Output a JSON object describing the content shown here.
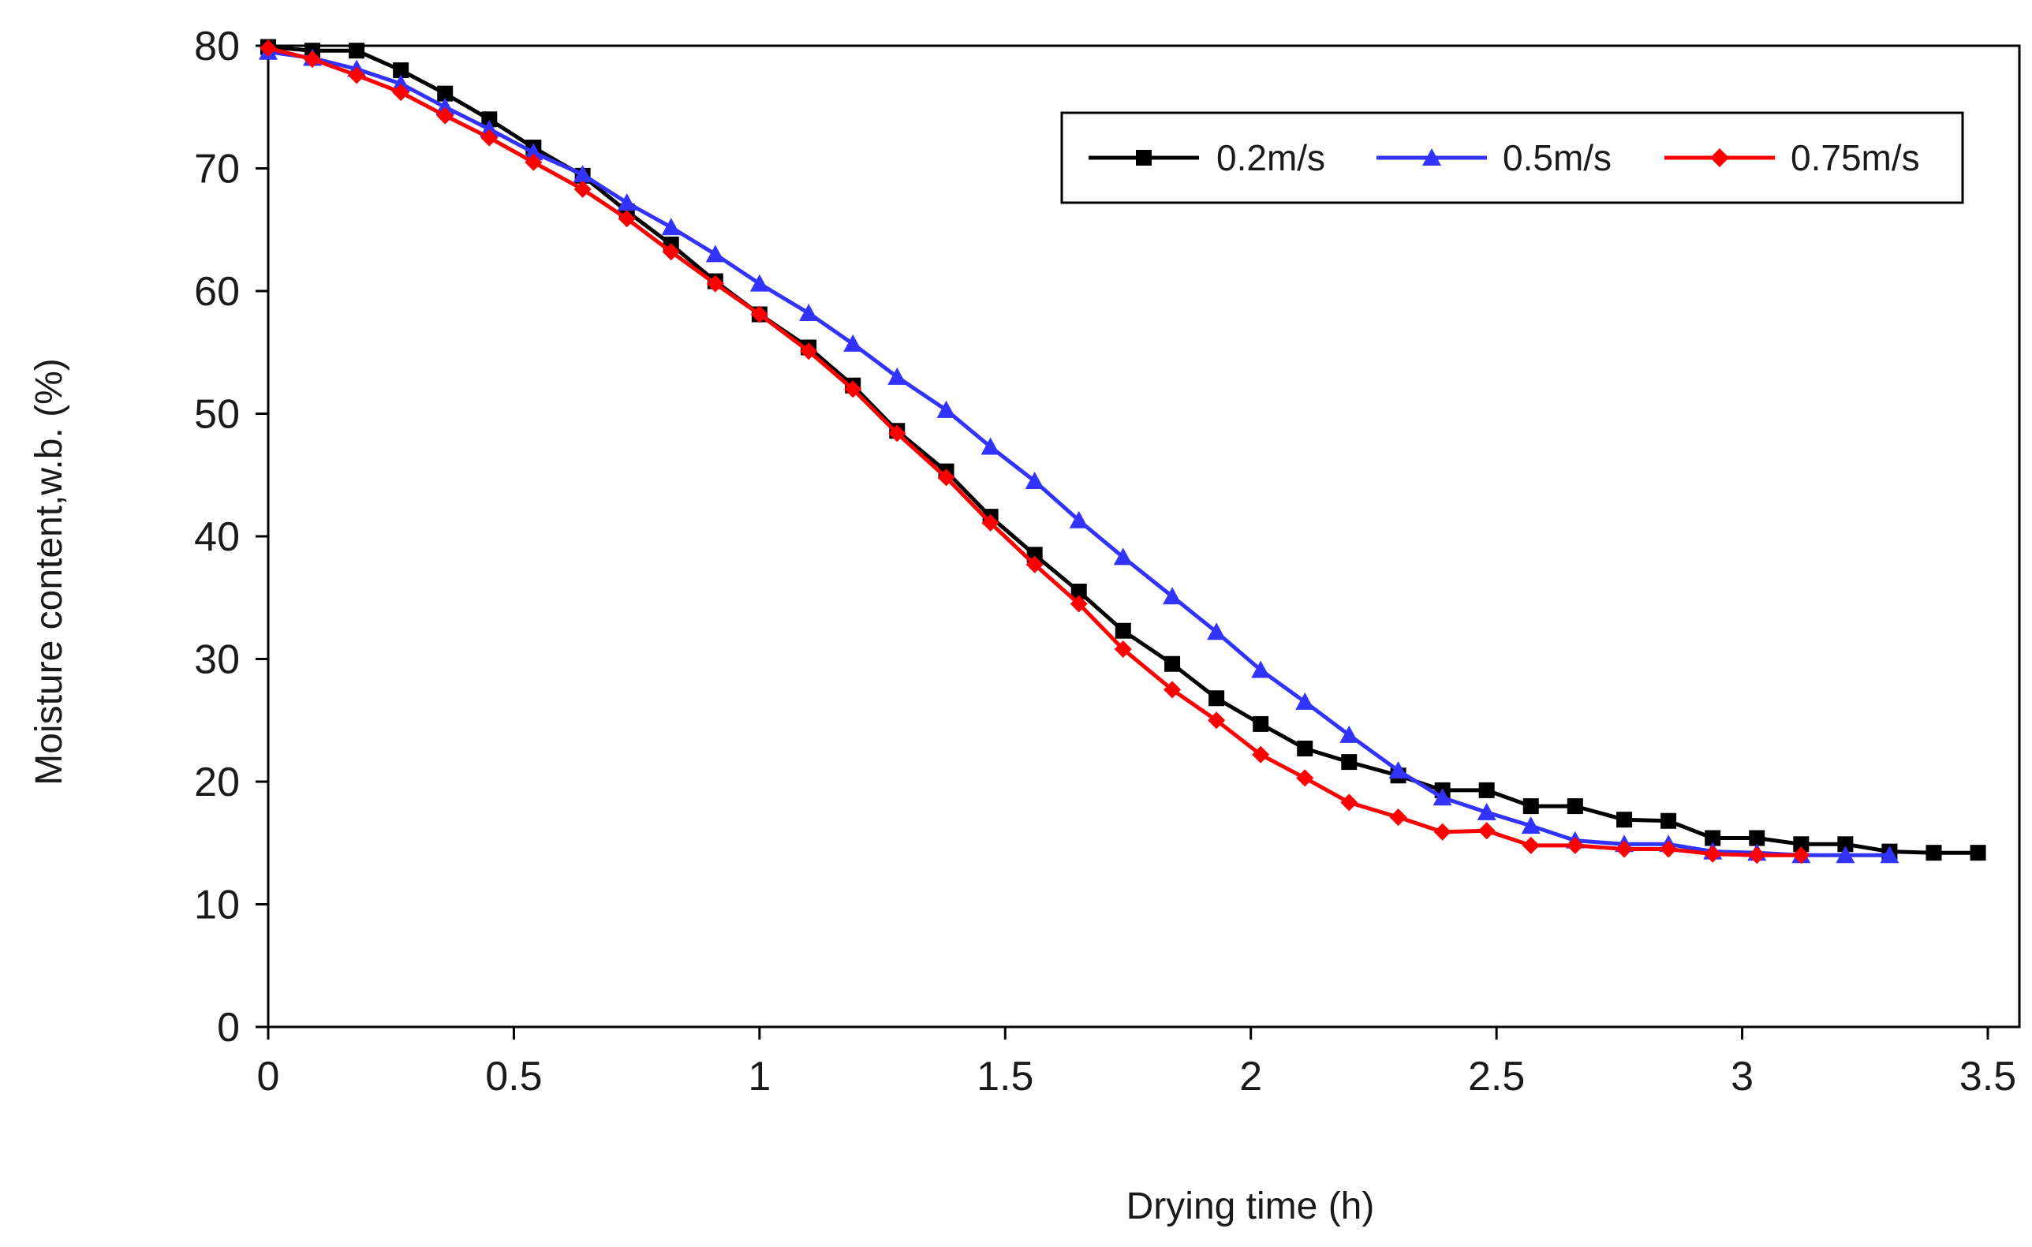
{
  "chart_data": {
    "type": "line",
    "title": "",
    "xlabel": "Drying time  (h)",
    "ylabel": "Moisture  content,w.b.  (%)",
    "xlim": [
      0,
      3.5
    ],
    "ylim": [
      0,
      80
    ],
    "xticks": [
      0,
      0.5,
      1,
      1.5,
      2,
      2.5,
      3,
      3.5
    ],
    "xtick_labels": [
      "0",
      "0.5",
      "1",
      "1.5",
      "2",
      "2.5",
      "3",
      "3.5"
    ],
    "yticks": [
      0,
      10,
      20,
      30,
      40,
      50,
      60,
      70,
      80
    ],
    "ytick_labels": [
      "0",
      "10",
      "20",
      "30",
      "40",
      "50",
      "60",
      "70",
      "80"
    ],
    "grid": false,
    "legend_position": "top-right",
    "series": [
      {
        "name": "0.2m/s",
        "color": "#000000",
        "marker": "square",
        "x": [
          0,
          0.09,
          0.18,
          0.27,
          0.36,
          0.45,
          0.54,
          0.64,
          0.73,
          0.82,
          0.91,
          1.0,
          1.1,
          1.19,
          1.28,
          1.38,
          1.47,
          1.56,
          1.65,
          1.74,
          1.84,
          1.93,
          2.02,
          2.11,
          2.2,
          2.3,
          2.39,
          2.48,
          2.57,
          2.66,
          2.76,
          2.85,
          2.94,
          3.03,
          3.12,
          3.21,
          3.3,
          3.39,
          3.48
        ],
        "values": [
          79.9,
          79.6,
          79.6,
          78.0,
          76.1,
          74.0,
          71.7,
          69.4,
          66.5,
          63.8,
          60.8,
          58.1,
          55.4,
          52.3,
          48.6,
          45.3,
          41.6,
          38.5,
          35.5,
          32.3,
          29.6,
          26.8,
          24.7,
          22.7,
          21.6,
          20.5,
          19.3,
          19.3,
          18.0,
          18.0,
          16.9,
          16.8,
          15.4,
          15.4,
          14.9,
          14.9,
          14.3,
          14.2,
          14.2
        ]
      },
      {
        "name": "0.5m/s",
        "color": "#3333ff",
        "marker": "triangle",
        "x": [
          0,
          0.09,
          0.18,
          0.27,
          0.36,
          0.45,
          0.54,
          0.64,
          0.73,
          0.82,
          0.91,
          1.0,
          1.1,
          1.19,
          1.28,
          1.38,
          1.47,
          1.56,
          1.65,
          1.74,
          1.84,
          1.93,
          2.02,
          2.11,
          2.2,
          2.3,
          2.39,
          2.48,
          2.57,
          2.66,
          2.76,
          2.85,
          2.94,
          3.03,
          3.12,
          3.21,
          3.3
        ],
        "values": [
          79.5,
          79.0,
          78.1,
          76.9,
          75.0,
          73.2,
          71.3,
          69.5,
          67.2,
          65.2,
          63.0,
          60.6,
          58.2,
          55.7,
          53.0,
          50.3,
          47.3,
          44.5,
          41.3,
          38.3,
          35.1,
          32.2,
          29.1,
          26.5,
          23.8,
          20.9,
          18.7,
          17.5,
          16.4,
          15.2,
          14.9,
          14.9,
          14.3,
          14.2,
          14.0,
          14.0,
          14.0
        ]
      },
      {
        "name": "0.75m/s",
        "color": "#ff0000",
        "marker": "diamond",
        "x": [
          0,
          0.09,
          0.18,
          0.27,
          0.36,
          0.45,
          0.54,
          0.64,
          0.73,
          0.82,
          0.91,
          1.0,
          1.1,
          1.19,
          1.28,
          1.38,
          1.47,
          1.56,
          1.65,
          1.74,
          1.84,
          1.93,
          2.02,
          2.11,
          2.2,
          2.3,
          2.39,
          2.48,
          2.57,
          2.66,
          2.76,
          2.85,
          2.94,
          3.03,
          3.12
        ],
        "values": [
          79.8,
          78.9,
          77.6,
          76.2,
          74.3,
          72.5,
          70.5,
          68.3,
          65.9,
          63.2,
          60.6,
          58.1,
          55.1,
          52.0,
          48.4,
          44.8,
          41.1,
          37.7,
          34.5,
          30.8,
          27.5,
          25.0,
          22.2,
          20.3,
          18.3,
          17.1,
          15.9,
          16.0,
          14.8,
          14.8,
          14.5,
          14.5,
          14.1,
          14.0,
          14.0
        ]
      }
    ]
  }
}
